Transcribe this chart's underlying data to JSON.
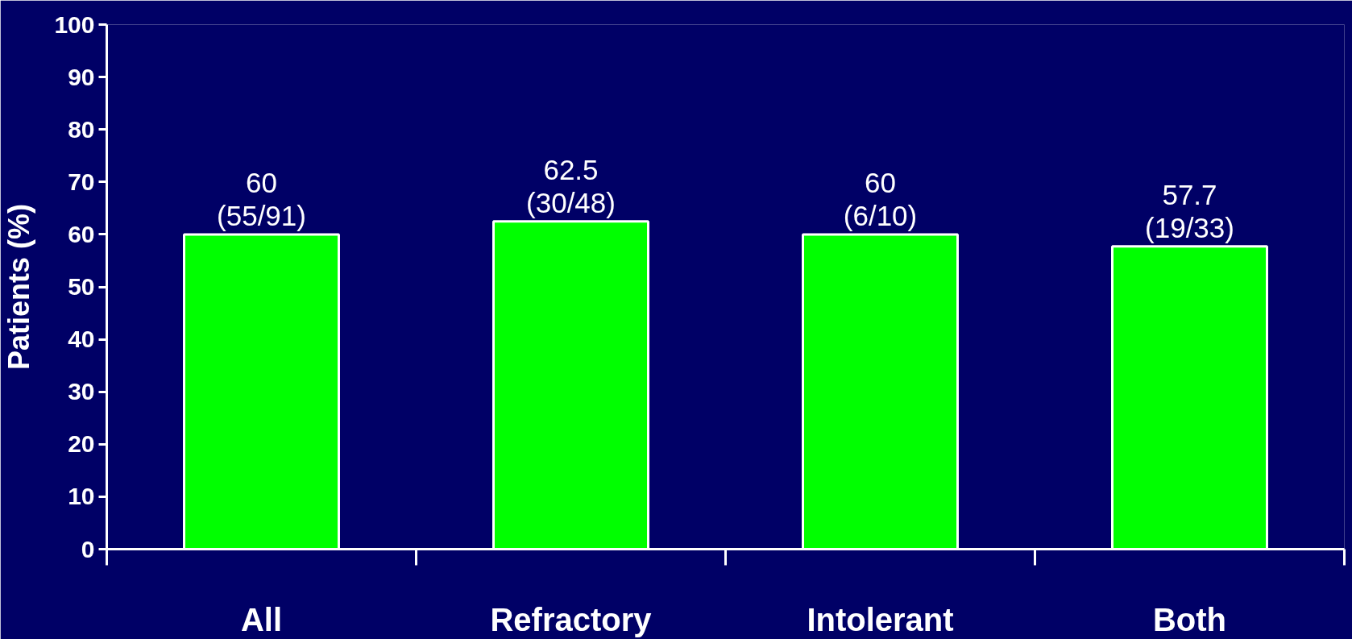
{
  "chart_data": {
    "type": "bar",
    "ylabel": "Patients (%)",
    "categories": [
      "All",
      "Refractory",
      "Intolerant",
      "Both"
    ],
    "values": [
      60,
      62.5,
      60,
      57.7
    ],
    "color": "#00ff00",
    "value_labels": [
      "60\n(55/91)",
      "62.5\n(30/48)",
      "60\n(6/10)",
      "57.7\n(19/33)"
    ],
    "ylim": [
      0,
      100
    ],
    "yticks": [
      0,
      10,
      20,
      30,
      40,
      50,
      60,
      70,
      80,
      90,
      100
    ],
    "grid": false
  }
}
